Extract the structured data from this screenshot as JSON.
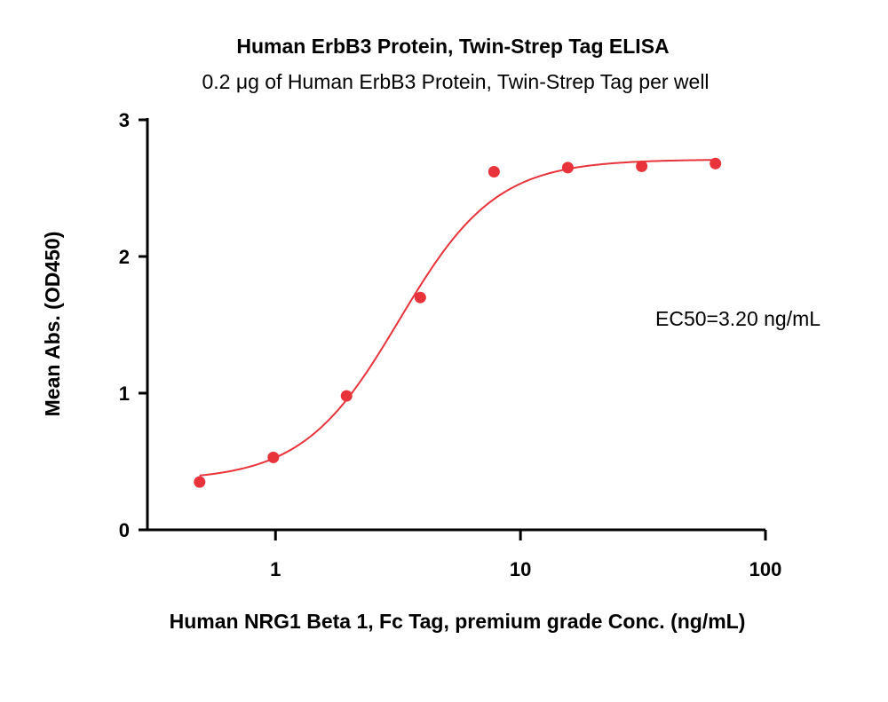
{
  "chart_data": {
    "type": "scatter",
    "title": "Human ErbB3 Protein, Twin-Strep Tag ELISA",
    "subtitle": "0.2 μg of Human ErbB3 Protein, Twin-Strep Tag per well",
    "xlabel": "Human NRG1 Beta 1, Fc Tag, premium grade Conc. (ng/mL)",
    "ylabel": "Mean Abs. (OD450)",
    "x_scale": "log",
    "xlim": [
      0.3,
      100
    ],
    "ylim": [
      0,
      3
    ],
    "x_ticks": [
      1,
      10,
      100
    ],
    "x_tick_labels": [
      "1",
      "10",
      "100"
    ],
    "y_ticks": [
      0,
      1,
      2,
      3
    ],
    "y_tick_labels": [
      "0",
      "1",
      "2",
      "3"
    ],
    "grid": false,
    "annotation": "EC50=3.20 ng/mL",
    "color": "#e8333a",
    "series": [
      {
        "x": [
          0.49,
          0.98,
          1.95,
          3.9,
          7.8,
          15.6,
          31.25,
          62.5
        ],
        "y": [
          0.35,
          0.53,
          0.98,
          1.7,
          2.62,
          2.65,
          2.66,
          2.68
        ]
      }
    ],
    "fit": {
      "bottom": 0.36,
      "top": 2.71,
      "ec50": 3.2,
      "hill": 2.2,
      "x_range": [
        0.49,
        62.5
      ]
    }
  }
}
